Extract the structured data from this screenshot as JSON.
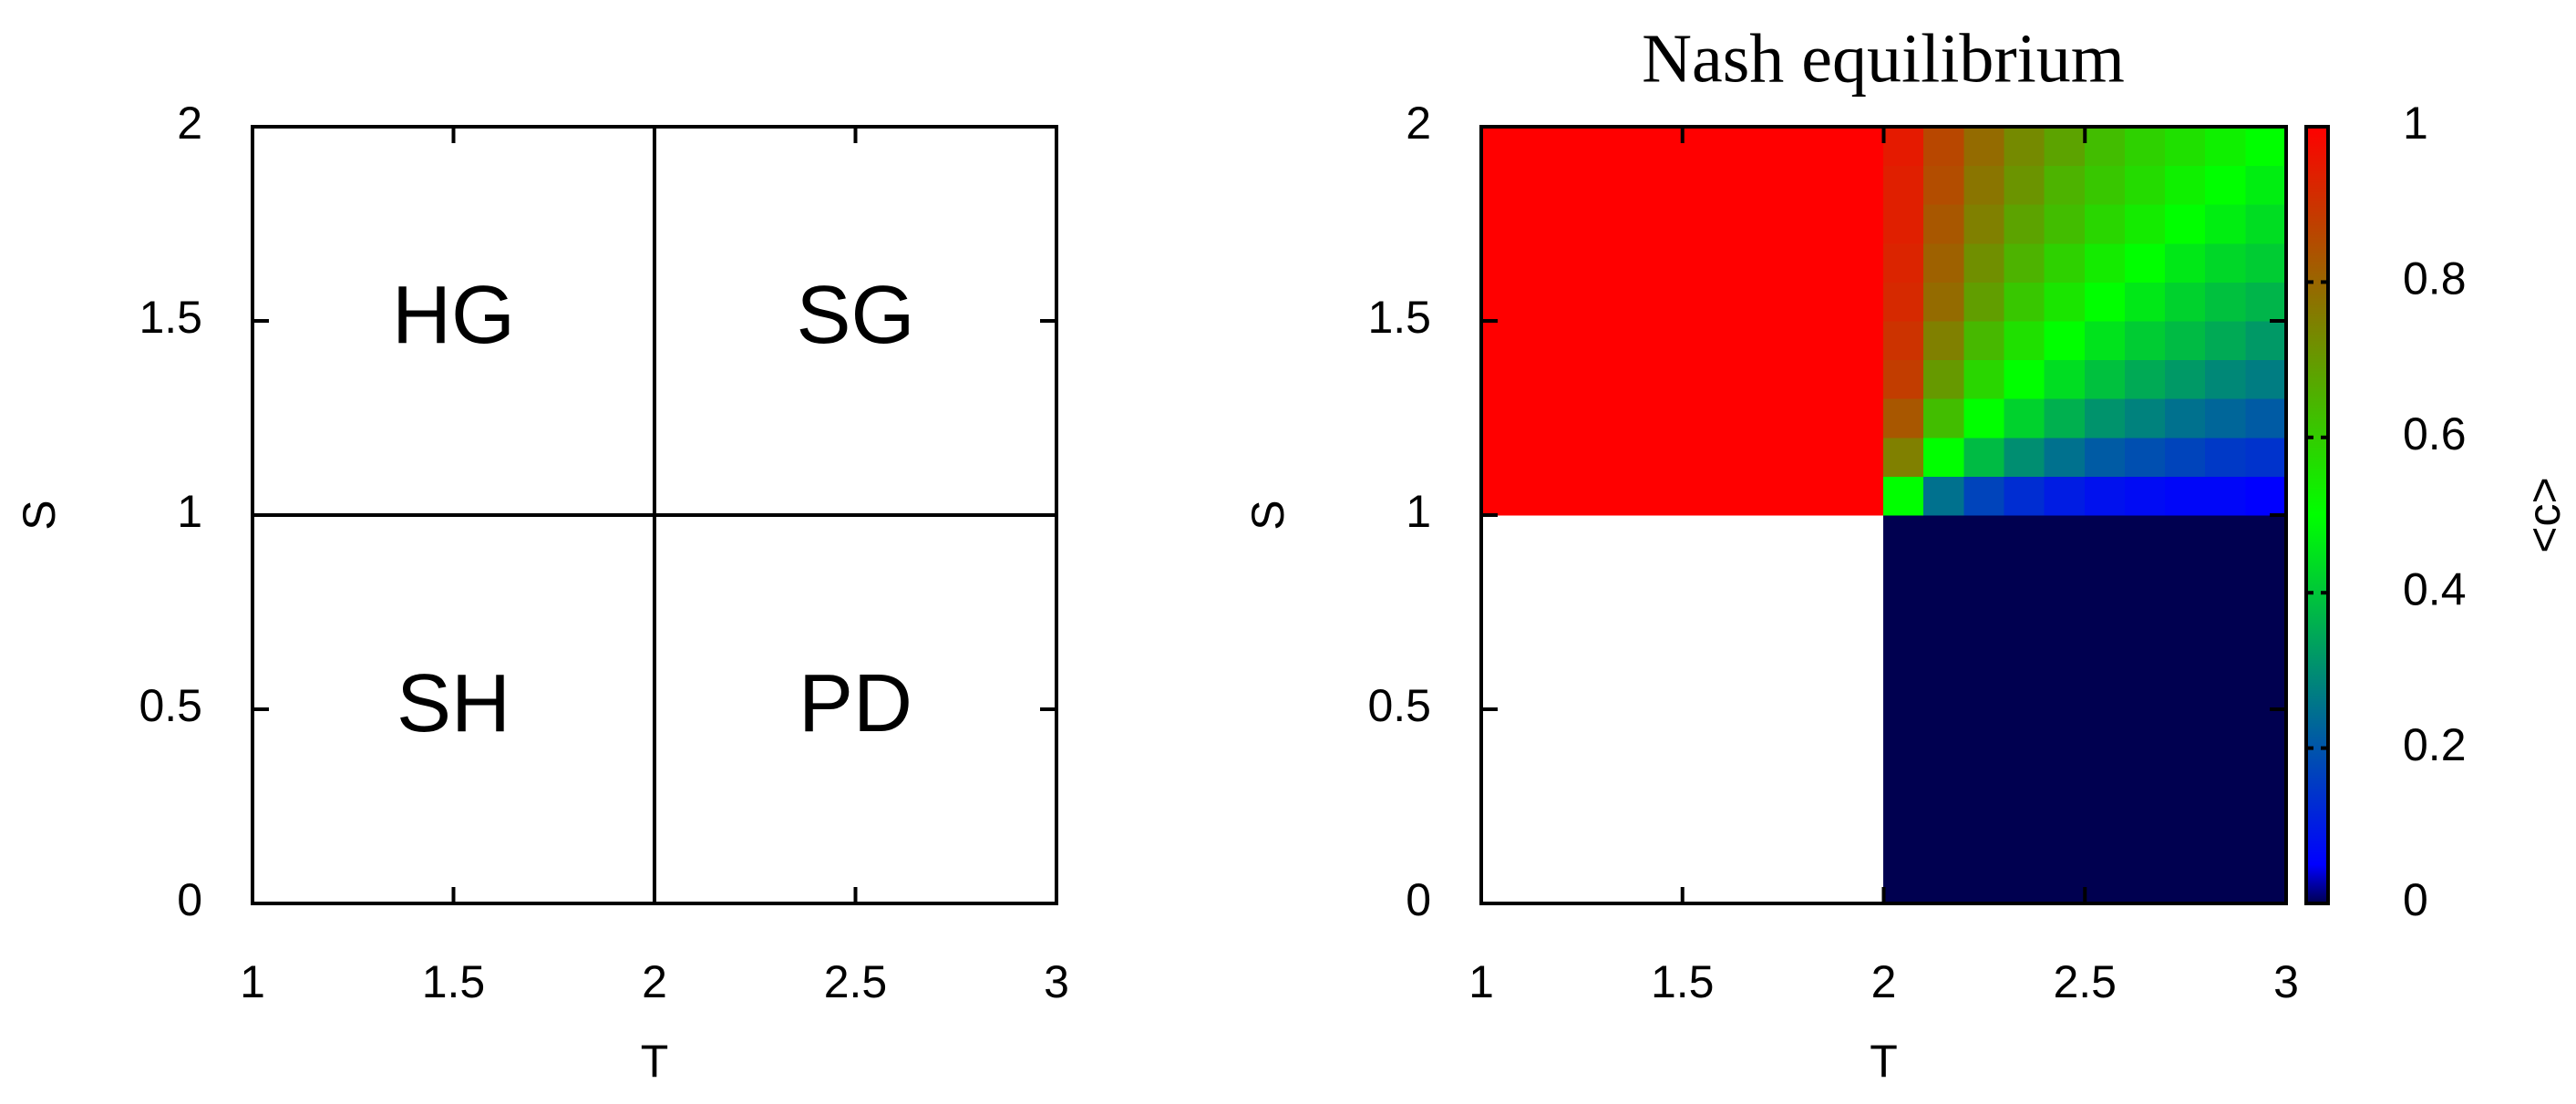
{
  "chart_data": [
    {
      "type": "regions",
      "x_label": "T",
      "y_label": "S",
      "xlim": [
        1,
        3
      ],
      "ylim": [
        0,
        2
      ],
      "xticks": [
        1,
        1.5,
        2,
        2.5,
        3
      ],
      "yticks": [
        0,
        0.5,
        1,
        1.5,
        2
      ],
      "label_color": "#3a3a96",
      "regions": [
        {
          "label": "HG",
          "xrange": [
            1,
            2
          ],
          "yrange": [
            1,
            2
          ]
        },
        {
          "label": "SG",
          "xrange": [
            2,
            3
          ],
          "yrange": [
            1,
            2
          ]
        },
        {
          "label": "SH",
          "xrange": [
            1,
            2
          ],
          "yrange": [
            0,
            1
          ]
        },
        {
          "label": "PD",
          "xrange": [
            2,
            3
          ],
          "yrange": [
            0,
            1
          ]
        }
      ]
    },
    {
      "type": "heatmap",
      "title": "Nash equilibrium",
      "x_label": "T",
      "y_label": "S",
      "colorbar_label": "<c>",
      "xlim": [
        1,
        3
      ],
      "ylim": [
        0,
        2
      ],
      "xticks": [
        1,
        1.5,
        2,
        2.5,
        3
      ],
      "yticks": [
        0,
        0.5,
        1,
        1.5,
        2
      ],
      "clim": [
        0,
        1
      ],
      "cticks": [
        0,
        0.2,
        0.4,
        0.6,
        0.8,
        1
      ],
      "colorscale": [
        [
          0,
          "#000050"
        ],
        [
          0.05,
          "#0000ff"
        ],
        [
          0.5,
          "#00ff00"
        ],
        [
          1,
          "#ff0000"
        ]
      ],
      "x": [
        1.05,
        1.15,
        1.25,
        1.35,
        1.45,
        1.55,
        1.65,
        1.75,
        1.85,
        1.95,
        2.05,
        2.15,
        2.25,
        2.35,
        2.45,
        2.55,
        2.65,
        2.75,
        2.85,
        2.95
      ],
      "y": [
        0.05,
        0.15,
        0.25,
        0.35,
        0.45,
        0.55,
        0.65,
        0.75,
        0.85,
        0.95,
        1.05,
        1.15,
        1.25,
        1.35,
        1.45,
        1.55,
        1.65,
        1.75,
        1.85,
        1.95
      ],
      "z": [
        [
          null,
          null,
          null,
          null,
          null,
          null,
          null,
          null,
          null,
          null,
          0,
          0,
          0,
          0,
          0,
          0,
          0,
          0,
          0,
          0
        ],
        [
          null,
          null,
          null,
          null,
          null,
          null,
          null,
          null,
          null,
          null,
          0,
          0,
          0,
          0,
          0,
          0,
          0,
          0,
          0,
          0
        ],
        [
          null,
          null,
          null,
          null,
          null,
          null,
          null,
          null,
          null,
          null,
          0,
          0,
          0,
          0,
          0,
          0,
          0,
          0,
          0,
          0
        ],
        [
          null,
          null,
          null,
          null,
          null,
          null,
          null,
          null,
          null,
          null,
          0,
          0,
          0,
          0,
          0,
          0,
          0,
          0,
          0,
          0
        ],
        [
          null,
          null,
          null,
          null,
          null,
          null,
          null,
          null,
          null,
          null,
          0,
          0,
          0,
          0,
          0,
          0,
          0,
          0,
          0,
          0
        ],
        [
          null,
          null,
          null,
          null,
          null,
          null,
          null,
          null,
          null,
          null,
          0,
          0,
          0,
          0,
          0,
          0,
          0,
          0,
          0,
          0
        ],
        [
          null,
          null,
          null,
          null,
          null,
          null,
          null,
          null,
          null,
          null,
          0,
          0,
          0,
          0,
          0,
          0,
          0,
          0,
          0,
          0
        ],
        [
          null,
          null,
          null,
          null,
          null,
          null,
          null,
          null,
          null,
          null,
          0,
          0,
          0,
          0,
          0,
          0,
          0,
          0,
          0,
          0
        ],
        [
          null,
          null,
          null,
          null,
          null,
          null,
          null,
          null,
          null,
          null,
          0,
          0,
          0,
          0,
          0,
          0,
          0,
          0,
          0,
          0
        ],
        [
          null,
          null,
          null,
          null,
          null,
          null,
          null,
          null,
          null,
          null,
          0,
          0,
          0,
          0,
          0,
          0,
          0,
          0,
          0,
          0
        ],
        [
          1,
          1,
          1,
          1,
          1,
          1,
          1,
          1,
          1,
          1,
          0.5,
          0.25,
          0.17,
          0.13,
          0.1,
          0.08,
          0.07,
          0.06,
          0.06,
          0.05
        ],
        [
          1,
          1,
          1,
          1,
          1,
          1,
          1,
          1,
          1,
          1,
          0.75,
          0.5,
          0.38,
          0.3,
          0.25,
          0.21,
          0.19,
          0.17,
          0.15,
          0.14
        ],
        [
          1,
          1,
          1,
          1,
          1,
          1,
          1,
          1,
          1,
          1,
          0.83,
          0.63,
          0.5,
          0.42,
          0.36,
          0.31,
          0.28,
          0.25,
          0.23,
          0.21
        ],
        [
          1,
          1,
          1,
          1,
          1,
          1,
          1,
          1,
          1,
          1,
          0.88,
          0.7,
          0.58,
          0.5,
          0.44,
          0.39,
          0.35,
          0.32,
          0.29,
          0.27
        ],
        [
          1,
          1,
          1,
          1,
          1,
          1,
          1,
          1,
          1,
          1,
          0.9,
          0.75,
          0.64,
          0.56,
          0.5,
          0.45,
          0.41,
          0.38,
          0.35,
          0.32
        ],
        [
          1,
          1,
          1,
          1,
          1,
          1,
          1,
          1,
          1,
          1,
          0.92,
          0.79,
          0.69,
          0.61,
          0.55,
          0.5,
          0.46,
          0.42,
          0.39,
          0.37
        ],
        [
          1,
          1,
          1,
          1,
          1,
          1,
          1,
          1,
          1,
          1,
          0.93,
          0.81,
          0.72,
          0.65,
          0.59,
          0.54,
          0.5,
          0.46,
          0.43,
          0.41
        ],
        [
          1,
          1,
          1,
          1,
          1,
          1,
          1,
          1,
          1,
          1,
          0.94,
          0.83,
          0.75,
          0.68,
          0.63,
          0.58,
          0.54,
          0.5,
          0.47,
          0.44
        ],
        [
          1,
          1,
          1,
          1,
          1,
          1,
          1,
          1,
          1,
          1,
          0.94,
          0.85,
          0.77,
          0.71,
          0.65,
          0.61,
          0.57,
          0.53,
          0.5,
          0.47
        ],
        [
          1,
          1,
          1,
          1,
          1,
          1,
          1,
          1,
          1,
          1,
          0.95,
          0.86,
          0.79,
          0.73,
          0.68,
          0.63,
          0.59,
          0.56,
          0.53,
          0.5
        ]
      ]
    }
  ]
}
